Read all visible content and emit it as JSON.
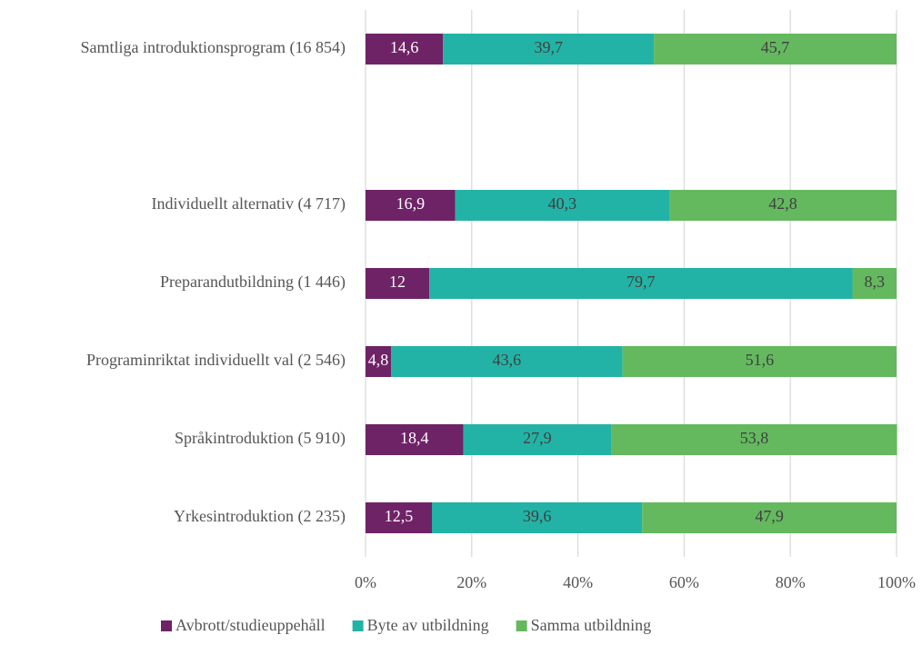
{
  "chart_data": {
    "type": "stacked_barh",
    "categories": [
      "Samtliga introduktionsprogram (16 854)",
      null,
      "Individuellt alternativ (4 717)",
      "Preparandutbildning (1 446)",
      "Programinriktat individuellt val (2 546)",
      "Språkintroduktion (5 910)",
      "Yrkesintroduktion (2 235)"
    ],
    "series": [
      {
        "name": "Avbrott/studieuppehåll",
        "color": "#6f2367",
        "values": [
          14.6,
          null,
          16.9,
          12,
          4.8,
          18.4,
          12.5
        ],
        "value_labels": [
          "14,6",
          null,
          "16,9",
          "12",
          "4,8",
          "18,4",
          "12,5"
        ]
      },
      {
        "name": "Byte av utbildning",
        "color": "#22b3a6",
        "values": [
          39.7,
          null,
          40.3,
          79.7,
          43.6,
          27.9,
          39.6
        ],
        "value_labels": [
          "39,7",
          null,
          "40,3",
          "79,7",
          "43,6",
          "27,9",
          "39,6"
        ]
      },
      {
        "name": "Samma utbildning",
        "color": "#64b95f",
        "values": [
          45.7,
          null,
          42.8,
          8.3,
          51.6,
          53.8,
          47.9
        ],
        "value_labels": [
          "45,7",
          null,
          "42,8",
          "8,3",
          "51,6",
          "53,8",
          "47,9"
        ]
      }
    ],
    "xlim": [
      0,
      100
    ],
    "xticks": [
      {
        "value": 0,
        "label": "0%"
      },
      {
        "value": 20,
        "label": "20%"
      },
      {
        "value": 40,
        "label": "40%"
      },
      {
        "value": 60,
        "label": "60%"
      },
      {
        "value": 80,
        "label": "80%"
      },
      {
        "value": 100,
        "label": "100%"
      }
    ],
    "grid": true,
    "legend": "bottom"
  }
}
